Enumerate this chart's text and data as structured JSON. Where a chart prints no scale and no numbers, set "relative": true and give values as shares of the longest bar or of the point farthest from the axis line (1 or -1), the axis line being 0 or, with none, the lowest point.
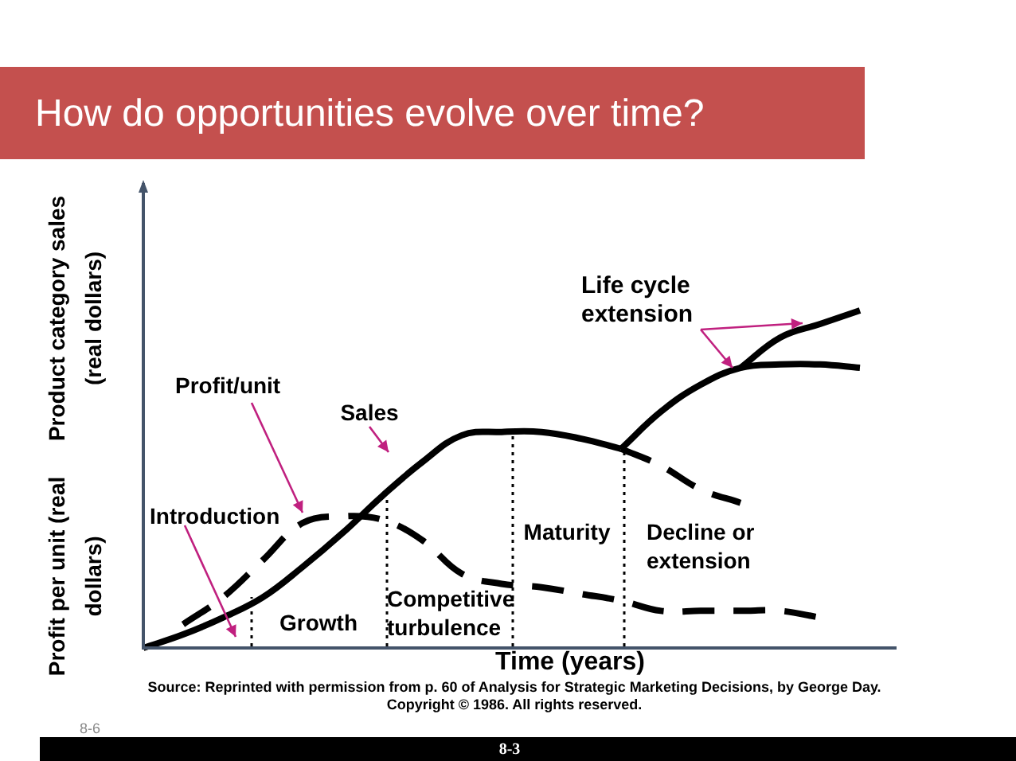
{
  "chart_data": {
    "type": "line",
    "title": "How do opportunities evolve over time?",
    "xlabel": "Time (years)",
    "ylabel": "Product category sales (real dollars)",
    "relative": true,
    "legend": false,
    "marker": "none",
    "categories": [
      null,
      null,
      null,
      null,
      null,
      null,
      null,
      null,
      null,
      null,
      null,
      null,
      null,
      null,
      null,
      null,
      null,
      null,
      null
    ],
    "series": [
      {
        "name": "Sales",
        "color": "#000000",
        "line_style": "solid",
        "values": [
          0,
          0.04,
          0.09,
          0.15,
          0.24,
          0.34,
          0.45,
          0.55,
          0.63,
          0.64,
          0.64,
          0.62,
          0.59,
          null,
          null,
          null,
          null,
          null,
          null
        ]
      },
      {
        "color": "#000000",
        "line_style": "solid",
        "values": [
          null,
          null,
          null,
          null,
          null,
          null,
          null,
          null,
          null,
          null,
          null,
          null,
          0.59,
          0.7,
          0.78,
          0.83,
          0.84,
          0.84,
          0.83
        ]
      },
      {
        "color": "#000000",
        "line_style": "solid",
        "values": [
          null,
          null,
          null,
          null,
          null,
          null,
          null,
          null,
          null,
          null,
          null,
          null,
          null,
          null,
          null,
          0.83,
          0.92,
          0.96,
          1
        ]
      },
      {
        "color": "#000000",
        "line_style": "dashed",
        "values": [
          null,
          null,
          null,
          null,
          null,
          null,
          null,
          null,
          null,
          null,
          null,
          null,
          0.59,
          0.54,
          0.47,
          0.43,
          null,
          null,
          null
        ]
      },
      {
        "name": "Profit/unit",
        "color": "#000000",
        "line_style": "dashed",
        "values": [
          null,
          0.07,
          0.15,
          0.26,
          0.37,
          0.39,
          0.38,
          0.32,
          0.22,
          0.19,
          0.18,
          0.16,
          0.14,
          0.11,
          0.11,
          0.11,
          0.11,
          0.09,
          null
        ]
      }
    ],
    "annotations": [
      "Introduction",
      "Growth",
      "Competitive turbulence",
      "Maturity",
      "Decline or extension",
      "Life cycle extension",
      "Profit per unit (real dollars)",
      "Source: Reprinted with permission from p. 60 of Analysis for Strategic Marketing Decisions, by George Day. Copyright © 1986. All rights reserved.",
      "8-6",
      "8-3"
    ]
  }
}
